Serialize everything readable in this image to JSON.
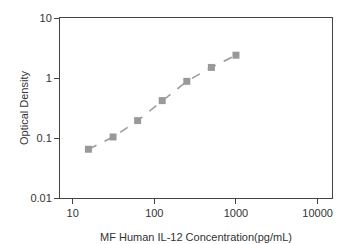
{
  "chart_data": {
    "type": "line",
    "x": [
      15.6,
      31.25,
      62.5,
      125,
      250,
      500,
      1000
    ],
    "values": [
      0.065,
      0.104,
      0.195,
      0.42,
      0.88,
      1.5,
      2.4
    ],
    "xlabel": "MF Human IL-12 Concentration(pg/mL)",
    "ylabel": "Optical Density",
    "xlim": [
      7,
      15000
    ],
    "ylim": [
      0.01,
      10
    ],
    "xticks": [
      10,
      100,
      1000,
      10000
    ],
    "yticks": [
      0.01,
      0.1,
      1,
      10
    ],
    "log": true,
    "grid": false,
    "color": "#999999",
    "marker": "square",
    "line_style": "dashed"
  }
}
